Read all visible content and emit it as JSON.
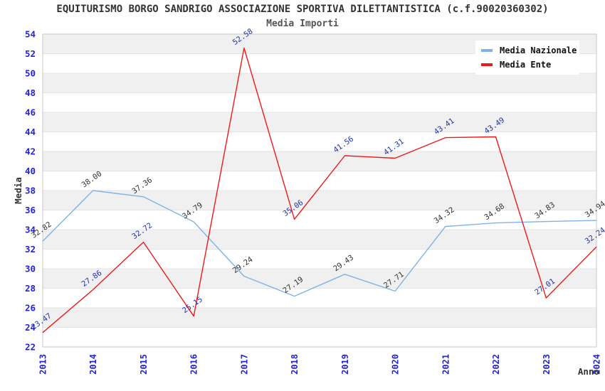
{
  "title": "EQUITURISMO BORGO SANDRIGO ASSOCIAZIONE SPORTIVA DILETTANTISTICA (c.f.90020360302)",
  "subtitle": "Media Importi",
  "chart_data": {
    "type": "line",
    "categories": [
      "2013",
      "2014",
      "2015",
      "2016",
      "2017",
      "2018",
      "2019",
      "2020",
      "2021",
      "2022",
      "2023",
      "2024"
    ],
    "series": [
      {
        "name": "Media Nazionale",
        "color": "#7FB2E5",
        "label_color": "#333333",
        "values": [
          32.82,
          38.0,
          37.36,
          34.79,
          29.24,
          27.19,
          29.43,
          27.71,
          34.32,
          34.68,
          34.83,
          34.94
        ]
      },
      {
        "name": "Media Ente",
        "color": "#EE1A1A",
        "label_color": "#2233AA",
        "values": [
          23.47,
          27.86,
          32.72,
          25.15,
          52.58,
          35.06,
          41.56,
          41.31,
          43.41,
          43.49,
          27.01,
          32.24
        ]
      }
    ],
    "xlabel": "Anno",
    "ylabel": "Media",
    "ylim": [
      22,
      54
    ],
    "ytick_step": 2,
    "grid": "horizontal-bands",
    "legend_position": "top-right",
    "style": {
      "band_fill": "#F0F0F0",
      "band_alt_fill": "#FFFFFF",
      "gridline": "#E4E4E4",
      "plot_border": "#C9C9C9",
      "tick_color": "#2323D6"
    }
  }
}
